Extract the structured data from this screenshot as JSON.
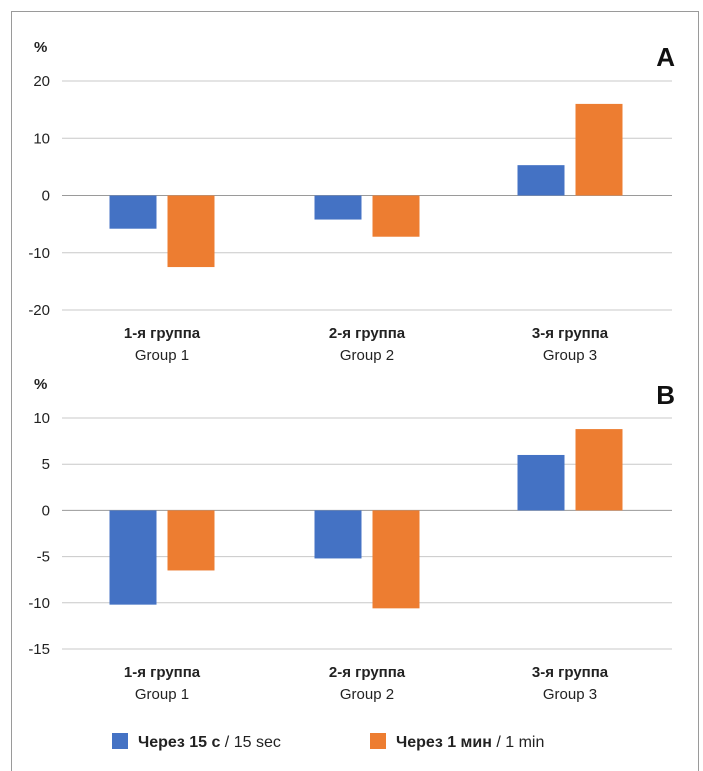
{
  "chart_data": [
    {
      "type": "bar",
      "panel_label": "A",
      "ylabel": "%",
      "ylim": [
        -20,
        20
      ],
      "yticks": [
        20,
        10,
        0,
        -10,
        -20
      ],
      "grid": true,
      "categories": [
        {
          "ru": "1-я группа",
          "en": "Group 1"
        },
        {
          "ru": "2-я группа",
          "en": "Group 2"
        },
        {
          "ru": "3-я группа",
          "en": "Group 3"
        }
      ],
      "series": [
        {
          "name_ru": "Через 15 с",
          "name_en": "15 sec",
          "color": "#4472C4",
          "values": [
            -5.8,
            -4.2,
            5.3
          ]
        },
        {
          "name_ru": "Через 1 мин",
          "name_en": "1 min",
          "color": "#ED7D31",
          "values": [
            -12.5,
            -7.2,
            16.0
          ]
        }
      ]
    },
    {
      "type": "bar",
      "panel_label": "B",
      "ylabel": "%",
      "ylim": [
        -15,
        10
      ],
      "yticks": [
        10,
        5,
        0,
        -5,
        -10,
        -15
      ],
      "grid": true,
      "categories": [
        {
          "ru": "1-я группа",
          "en": "Group 1"
        },
        {
          "ru": "2-я группа",
          "en": "Group 2"
        },
        {
          "ru": "3-я группа",
          "en": "Group 3"
        }
      ],
      "series": [
        {
          "name_ru": "Через 15 с",
          "name_en": "15 sec",
          "color": "#4472C4",
          "values": [
            -10.2,
            -5.2,
            6.0
          ]
        },
        {
          "name_ru": "Через 1 мин",
          "name_en": "1 min",
          "color": "#ED7D31",
          "values": [
            -6.5,
            -10.6,
            8.8
          ]
        }
      ]
    }
  ],
  "legend": {
    "placement": "bottom",
    "items": [
      {
        "bold": "Через 15 с",
        "sep": " / ",
        "rest": "15 sec",
        "color": "#4472C4"
      },
      {
        "bold": "Через 1 мин",
        "sep": " / ",
        "rest": "1 min",
        "color": "#ED7D31"
      }
    ]
  }
}
